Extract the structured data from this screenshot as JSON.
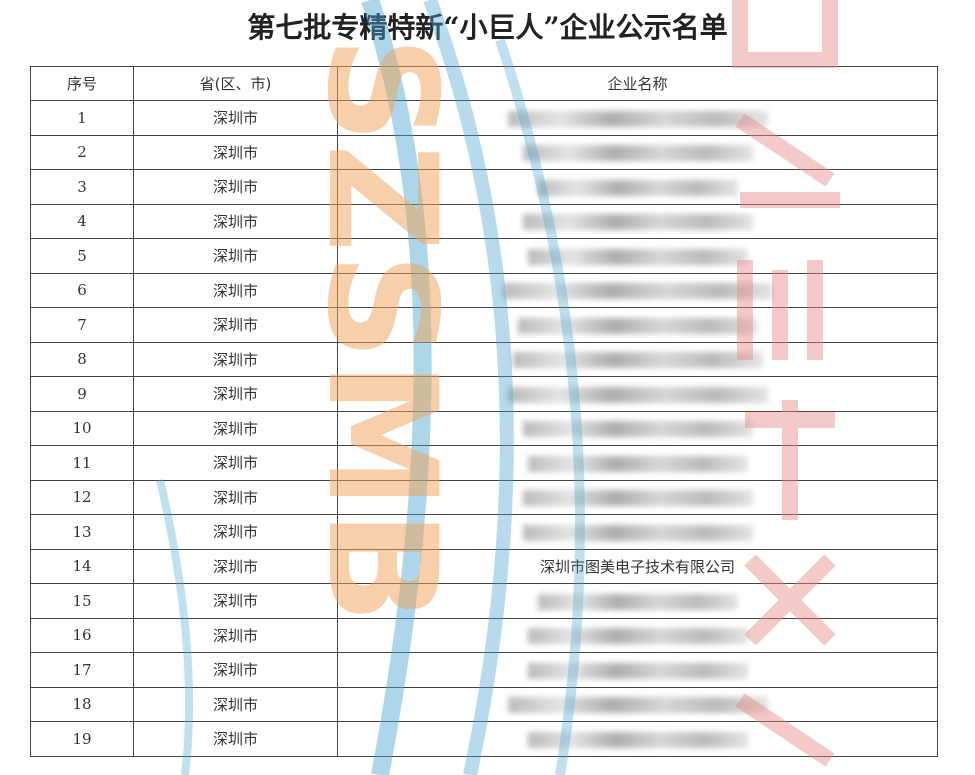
{
  "header": {
    "title": "第七批专精特新“小巨人”企业公示名单"
  },
  "watermark": "SZSMB",
  "table": {
    "columns": [
      "序号",
      "省(区、市)",
      "企业名称"
    ],
    "rows": [
      [
        1,
        "深圳市"
      ],
      [
        2,
        "深圳市"
      ],
      [
        3,
        "深圳市"
      ],
      [
        4,
        "深圳市"
      ],
      [
        5,
        "深圳市"
      ],
      [
        6,
        "深圳市"
      ],
      [
        7,
        "深圳市"
      ],
      [
        8,
        "深圳市"
      ],
      [
        9,
        "深圳市"
      ],
      [
        10,
        "深圳市"
      ],
      [
        11,
        "深圳市"
      ],
      [
        12,
        "深圳市"
      ],
      [
        13,
        "深圳市"
      ],
      [
        14,
        "深圳市",
        "深圳市图美电子技术有限公司"
      ],
      [
        15,
        "深圳市"
      ],
      [
        16,
        "深圳市"
      ],
      [
        17,
        "深圳市"
      ],
      [
        18,
        "深圳市"
      ],
      [
        19,
        "深圳市"
      ]
    ]
  }
}
